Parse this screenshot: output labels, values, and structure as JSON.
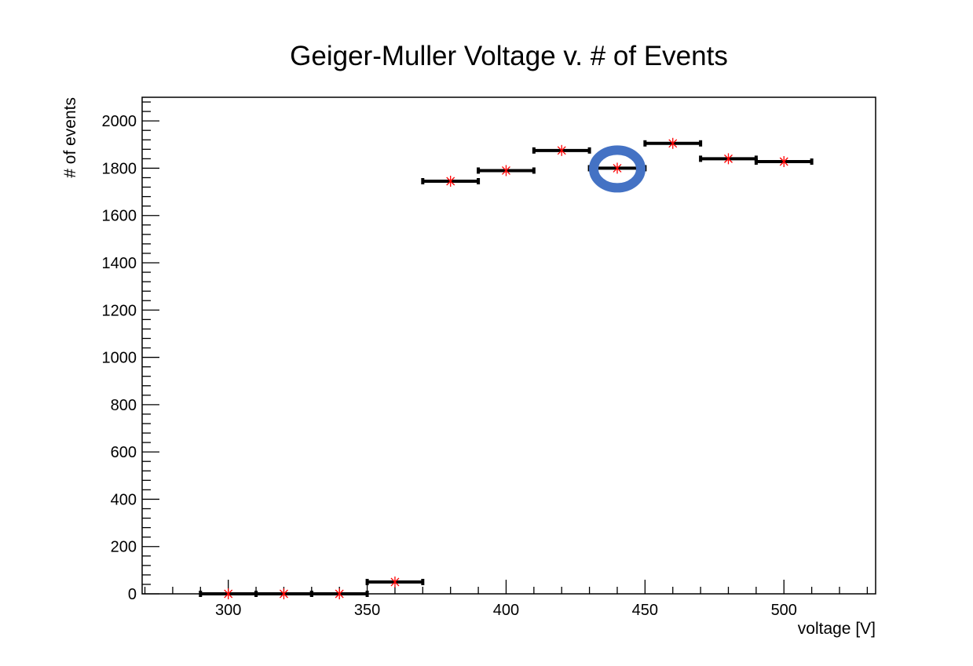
{
  "chart_data": {
    "type": "scatter",
    "title": "Geiger-Muller Voltage v. # of Events",
    "xlabel": "voltage [V]",
    "ylabel": "# of events",
    "xlim": [
      269,
      533
    ],
    "ylim": [
      0,
      2100
    ],
    "x_ticks": [
      300,
      350,
      400,
      450,
      500
    ],
    "y_ticks": [
      0,
      200,
      400,
      600,
      800,
      1000,
      1200,
      1400,
      1600,
      1800,
      2000
    ],
    "grid": false,
    "legend": "none",
    "bin_halfwidth": 20,
    "series": [
      {
        "x": [
          300,
          320,
          340,
          360,
          380,
          400,
          420,
          440,
          460,
          480,
          500
        ],
        "y": [
          0,
          0,
          0,
          50,
          1745,
          1790,
          1875,
          1800,
          1905,
          1840,
          1828
        ]
      }
    ],
    "annotation": {
      "shape": "ellipse",
      "x": 440,
      "y": 1800,
      "color": "#4472C4"
    },
    "colors": {
      "bars": "#000000",
      "markers": "#ff0000",
      "axes": "#000000"
    }
  }
}
